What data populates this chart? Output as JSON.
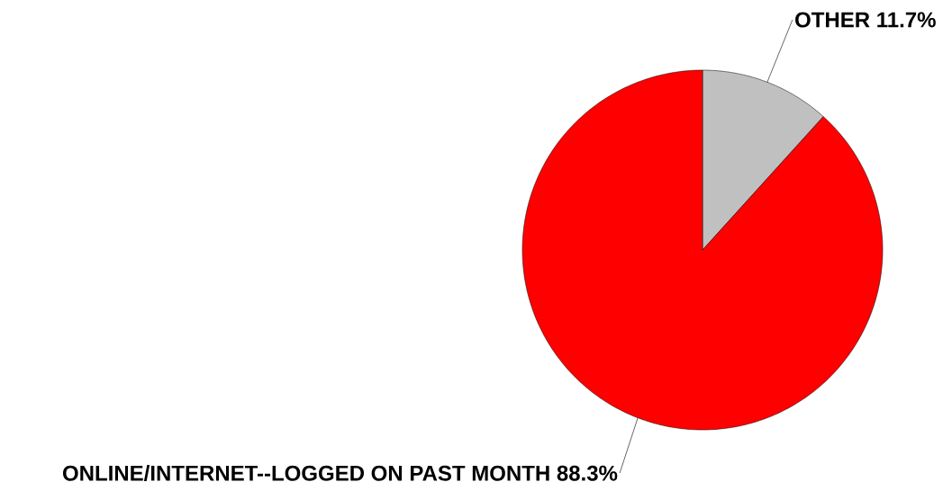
{
  "chart_data": {
    "type": "pie",
    "categories": [
      "OTHER",
      "ONLINE/INTERNET--LOGGED ON PAST MONTH"
    ],
    "values": [
      11.7,
      88.3
    ],
    "value_labels": [
      "11.7%",
      "88.3%"
    ],
    "colors": [
      "#c0c0c0",
      "#ff0000"
    ]
  }
}
